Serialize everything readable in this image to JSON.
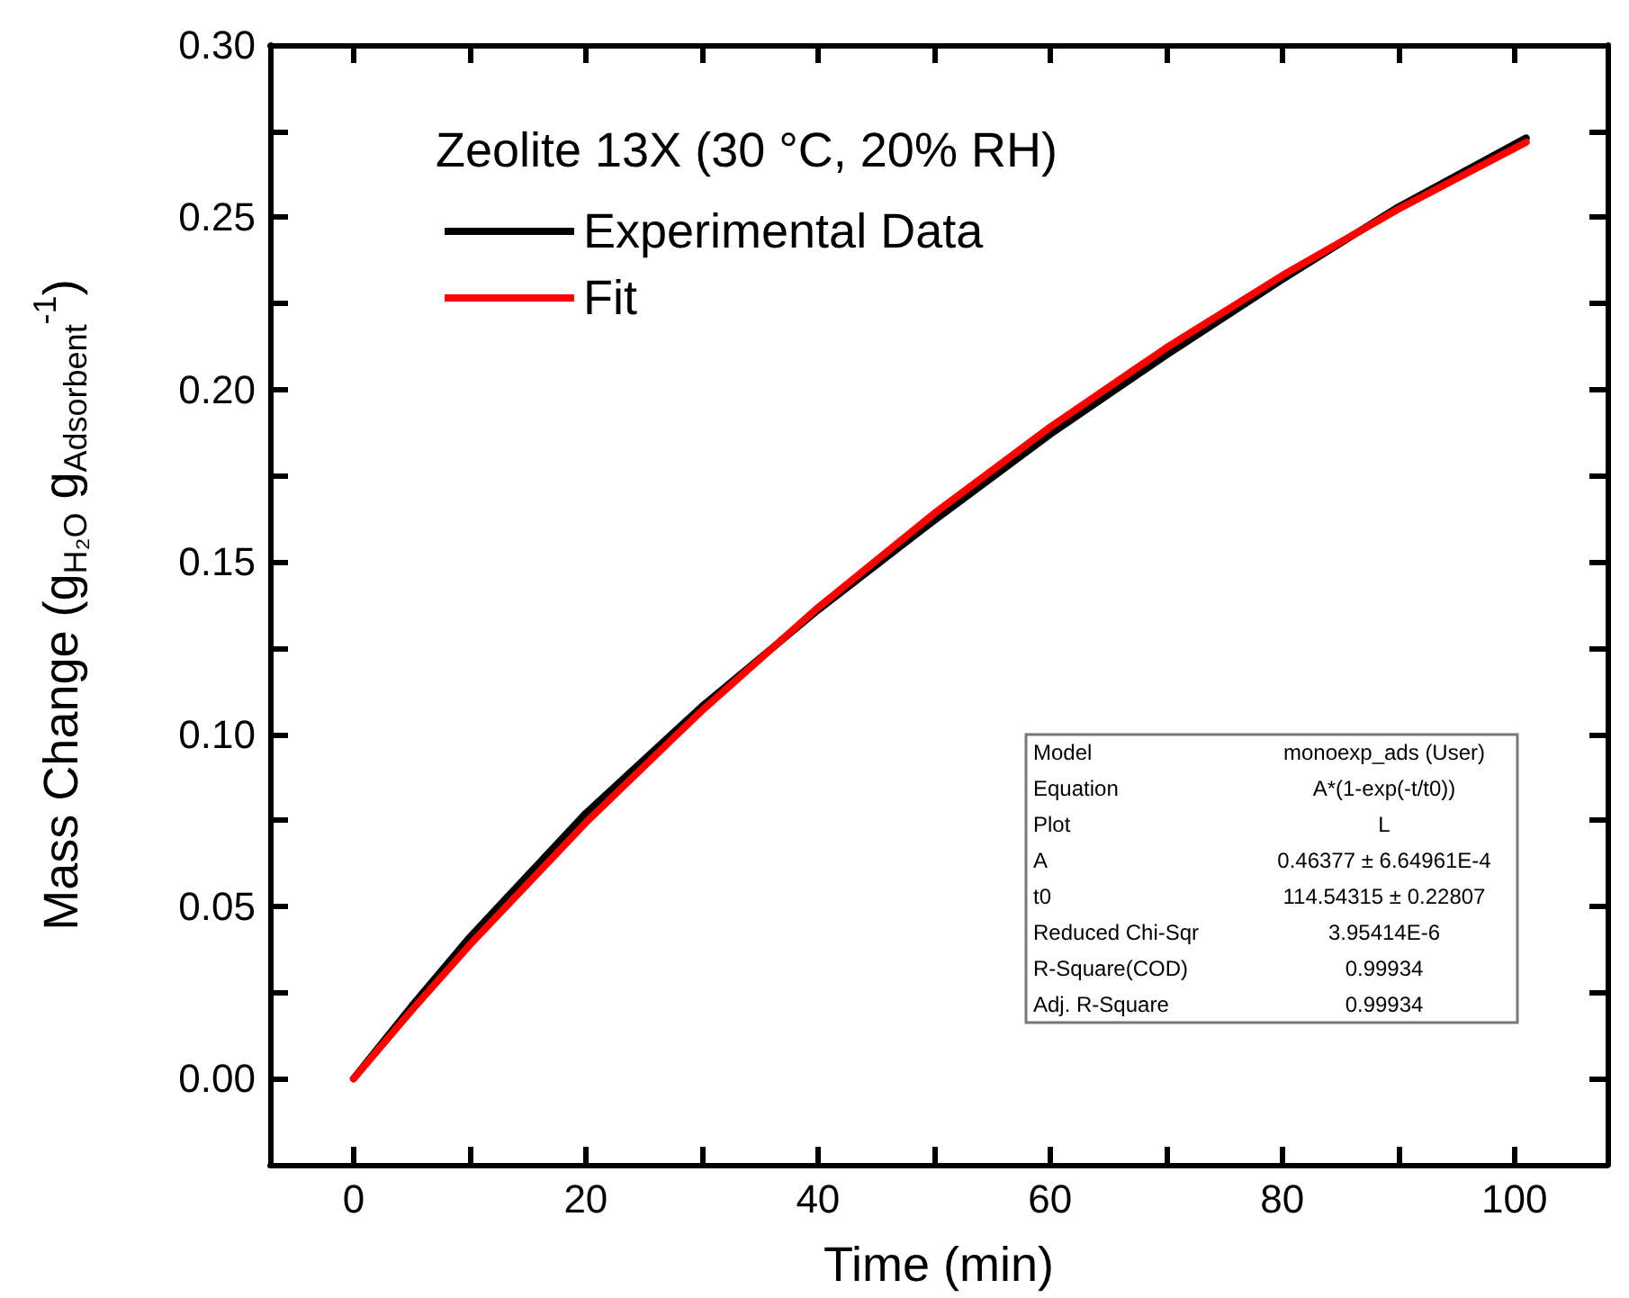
{
  "chart_data": {
    "type": "line",
    "xlabel": "Time (min)",
    "ylabel": "Mass Change (g$_{H₂O}$ g$_{Adsorbent}$$^{-1}$)",
    "legend_title": "Zeolite 13X (30 °C, 20% RH)",
    "x": [
      0,
      5,
      10,
      20,
      30,
      40,
      50,
      60,
      70,
      80,
      90,
      101
    ],
    "series": [
      {
        "name": "Experimental Data",
        "color": "#000000",
        "values": [
          0,
          0.021,
          0.041,
          0.077,
          0.108,
          0.136,
          0.162,
          0.187,
          0.21,
          0.232,
          0.253,
          0.273
        ]
      },
      {
        "name": "Fit",
        "color": "#ff0000",
        "values": [
          0,
          0.0198,
          0.0388,
          0.0743,
          0.1068,
          0.1367,
          0.164,
          0.1891,
          0.2121,
          0.2331,
          0.2524,
          0.2718
        ]
      }
    ],
    "xlim": [
      -7.2,
      108
    ],
    "xticks": [
      0,
      {
        "value": 10,
        "label": null
      },
      20,
      {
        "value": 30,
        "label": null
      },
      40,
      {
        "value": 50,
        "label": null
      },
      60,
      {
        "value": 70,
        "label": null
      },
      80,
      {
        "value": 90,
        "label": null
      },
      100
    ],
    "ylim": [
      -0.025,
      0.3
    ],
    "yticks": [
      {
        "value": 0,
        "label": "0.00"
      },
      {
        "value": 0.025,
        "label": null
      },
      {
        "value": 0.05,
        "label": "0.05"
      },
      {
        "value": 0.075,
        "label": null
      },
      {
        "value": 0.1,
        "label": "0.10"
      },
      {
        "value": 0.125,
        "label": null
      },
      {
        "value": 0.15,
        "label": "0.15"
      },
      {
        "value": 0.175,
        "label": null
      },
      {
        "value": 0.2,
        "label": "0.20"
      },
      {
        "value": 0.225,
        "label": null
      },
      {
        "value": 0.25,
        "label": "0.25"
      },
      {
        "value": 0.275,
        "label": null
      },
      {
        "value": 0.3,
        "label": "0.30"
      }
    ],
    "annotations": [
      "Model",
      "monoexp_ads (User)",
      "Equation",
      "A*(1-exp(-t/t0))",
      "Plot",
      "L",
      "A",
      "0.46377 ± 6.64961E-4",
      "t0",
      "114.54315 ± 0.22807",
      "Reduced Chi-Sqr",
      "3.95414E-6",
      "R-Square(COD)",
      "0.99934",
      "Adj. R-Square",
      "0.99934"
    ],
    "grid": false,
    "legend": "top left",
    "marker": "none",
    "line_style": "solid"
  }
}
